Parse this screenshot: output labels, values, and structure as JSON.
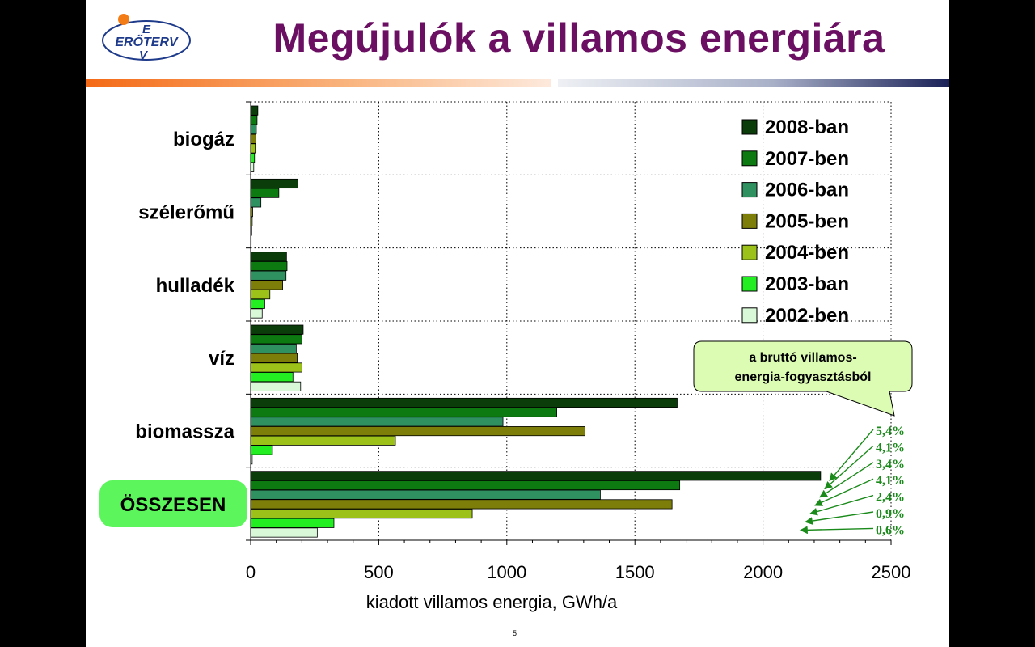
{
  "slide": {
    "title": "Megújulók a villamos energiára",
    "page_number": "5",
    "logo": {
      "letters_top": "E",
      "letters_main": "ERŐTERV",
      "letters_bottom": "V"
    },
    "total_badge": "ÖSSZESEN",
    "callout": {
      "line1": "a bruttó villamos-",
      "line2": "energia-fogyasztásból"
    },
    "share_labels": [
      "5,4%",
      "4,1%",
      "3,4%",
      "4,1%",
      "2,4%",
      "0,9%",
      "0,6%"
    ]
  },
  "chart_data": {
    "type": "bar",
    "orientation": "horizontal",
    "categories": [
      "biogáz",
      "szélerőmű",
      "hulladék",
      "víz",
      "biomassza",
      "ÖSSZESEN"
    ],
    "series": [
      {
        "name": "2008-ban",
        "color": "#0b3d0b",
        "values": [
          28,
          185,
          140,
          205,
          1665,
          2225
        ]
      },
      {
        "name": "2007-ben",
        "color": "#0c7a10",
        "values": [
          25,
          110,
          142,
          200,
          1195,
          1675
        ]
      },
      {
        "name": "2006-ban",
        "color": "#2f9060",
        "values": [
          22,
          40,
          138,
          178,
          985,
          1365
        ]
      },
      {
        "name": "2005-ben",
        "color": "#7d7d0a",
        "values": [
          20,
          8,
          125,
          182,
          1305,
          1645
        ]
      },
      {
        "name": "2004-ben",
        "color": "#9cc21a",
        "values": [
          18,
          6,
          75,
          200,
          565,
          865
        ]
      },
      {
        "name": "2003-ban",
        "color": "#22ee22",
        "values": [
          15,
          4,
          55,
          165,
          85,
          325
        ]
      },
      {
        "name": "2002-ben",
        "color": "#d8f8d8",
        "values": [
          12,
          2,
          45,
          195,
          6,
          260
        ]
      }
    ],
    "xlabel": "kiadott villamos energia, GWh/a",
    "xlim": [
      0,
      2500
    ],
    "xticks": [
      "0",
      "500",
      "1000",
      "1500",
      "2000",
      "2500"
    ],
    "grid": "vertical dotted",
    "legend_position": "top-right"
  }
}
